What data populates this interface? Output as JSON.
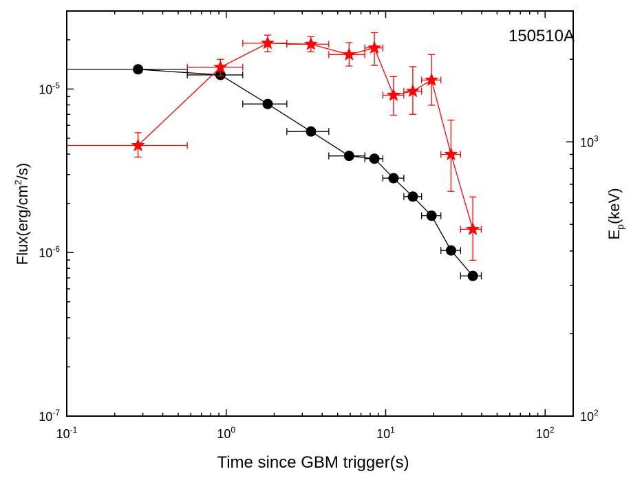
{
  "chart_data": {
    "type": "scatter",
    "annotation": "150510A",
    "xlabel": "Time since GBM trigger(s)",
    "ylabel_left": {
      "base": "Flux(erg/cm",
      "sup": "2",
      "tail": "/s)"
    },
    "ylabel_right": {
      "base": "E",
      "sub": "p",
      "tail": "(keV)"
    },
    "x_scale": "log",
    "xlim": [
      0.1,
      150
    ],
    "y_left_scale": "log",
    "y_left_lim": [
      1e-07,
      3e-05
    ],
    "y_right_scale": "log",
    "y_right_lim": [
      100,
      3000
    ],
    "x_ticks": [
      {
        "value": 0.1,
        "base": "10",
        "exp": "-1"
      },
      {
        "value": 1,
        "base": "10",
        "exp": "0"
      },
      {
        "value": 10,
        "base": "10",
        "exp": "1"
      },
      {
        "value": 100,
        "base": "10",
        "exp": "2"
      }
    ],
    "y_left_ticks": [
      {
        "value": 1e-07,
        "base": "10",
        "exp": "-7"
      },
      {
        "value": 1e-06,
        "base": "10",
        "exp": "-6"
      },
      {
        "value": 1e-05,
        "base": "10",
        "exp": "-5"
      }
    ],
    "y_right_ticks": [
      {
        "value": 100,
        "base": "10",
        "exp": "2"
      },
      {
        "value": 1000,
        "base": "10",
        "exp": "3"
      }
    ],
    "grid": false,
    "series": [
      {
        "axis": "left",
        "color": "#000000",
        "marker": "circle",
        "points": [
          {
            "x": 0.28,
            "xlo": 0.1,
            "xhi": 0.57,
            "y": 1.32e-05
          },
          {
            "x": 0.92,
            "xlo": 0.57,
            "xhi": 1.27,
            "y": 1.22e-05
          },
          {
            "x": 1.82,
            "xlo": 1.27,
            "xhi": 2.4,
            "y": 8.1e-06
          },
          {
            "x": 3.4,
            "xlo": 2.4,
            "xhi": 4.4,
            "y": 5.5e-06
          },
          {
            "x": 5.9,
            "xlo": 4.4,
            "xhi": 7.4,
            "y": 3.9e-06
          },
          {
            "x": 8.5,
            "xlo": 7.4,
            "xhi": 9.6,
            "y": 3.75e-06
          },
          {
            "x": 11.2,
            "xlo": 9.6,
            "xhi": 13.0,
            "y": 2.85e-06
          },
          {
            "x": 14.8,
            "xlo": 13.0,
            "xhi": 16.8,
            "y": 2.2e-06
          },
          {
            "x": 19.4,
            "xlo": 16.8,
            "xhi": 22.2,
            "y": 1.68e-06
          },
          {
            "x": 25.7,
            "xlo": 22.2,
            "xhi": 29.5,
            "y": 1.03e-06
          },
          {
            "x": 35.2,
            "xlo": 29.5,
            "xhi": 39.8,
            "y": 7.2e-07
          }
        ]
      },
      {
        "axis": "right",
        "color": "#ff0000",
        "marker": "star",
        "points": [
          {
            "x": 0.28,
            "xlo": 0.1,
            "xhi": 0.57,
            "y": 970,
            "ylo": 880,
            "yhi": 1080
          },
          {
            "x": 0.92,
            "xlo": 0.57,
            "xhi": 1.27,
            "y": 1870,
            "ylo": 1740,
            "yhi": 2000
          },
          {
            "x": 1.82,
            "xlo": 1.27,
            "xhi": 2.4,
            "y": 2290,
            "ylo": 2130,
            "yhi": 2450
          },
          {
            "x": 3.4,
            "xlo": 2.4,
            "xhi": 4.4,
            "y": 2270,
            "ylo": 2130,
            "yhi": 2420
          },
          {
            "x": 5.9,
            "xlo": 4.4,
            "xhi": 7.4,
            "y": 2080,
            "ylo": 1890,
            "yhi": 2300
          },
          {
            "x": 8.5,
            "xlo": 7.4,
            "xhi": 9.6,
            "y": 2200,
            "ylo": 1900,
            "yhi": 2500
          },
          {
            "x": 11.2,
            "xlo": 9.6,
            "xhi": 13.0,
            "y": 1480,
            "ylo": 1250,
            "yhi": 1730
          },
          {
            "x": 14.8,
            "xlo": 13.0,
            "xhi": 16.8,
            "y": 1530,
            "ylo": 1260,
            "yhi": 1880
          },
          {
            "x": 19.4,
            "xlo": 16.8,
            "xhi": 22.2,
            "y": 1680,
            "ylo": 1360,
            "yhi": 2080
          },
          {
            "x": 25.7,
            "xlo": 22.2,
            "xhi": 29.5,
            "y": 900,
            "ylo": 660,
            "yhi": 1200
          },
          {
            "x": 35.2,
            "xlo": 29.5,
            "xhi": 39.8,
            "y": 480,
            "ylo": 370,
            "yhi": 630
          }
        ]
      }
    ]
  }
}
